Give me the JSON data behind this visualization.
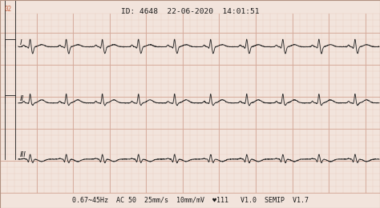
{
  "bg_color": "#f2e4dc",
  "grid_minor_color": "#e8c8bc",
  "grid_major_color": "#d4a898",
  "ecg_color": "#2a2a2a",
  "header_text": "ID: 4648  22-06-2020  14:01:51",
  "footer_text": "0.67~45Hz  AC 50  25mm/s  10mm/mV  ♥111   V1.0  SEMIP  V1.7",
  "top_label": "02",
  "leads": [
    "I",
    "II",
    "III"
  ],
  "lead_label_color": "#1a1a1a",
  "header_fontsize": 6.8,
  "footer_fontsize": 6.0,
  "label_fontsize": 6.5,
  "line_width": 0.65,
  "border_color": "#b09080"
}
